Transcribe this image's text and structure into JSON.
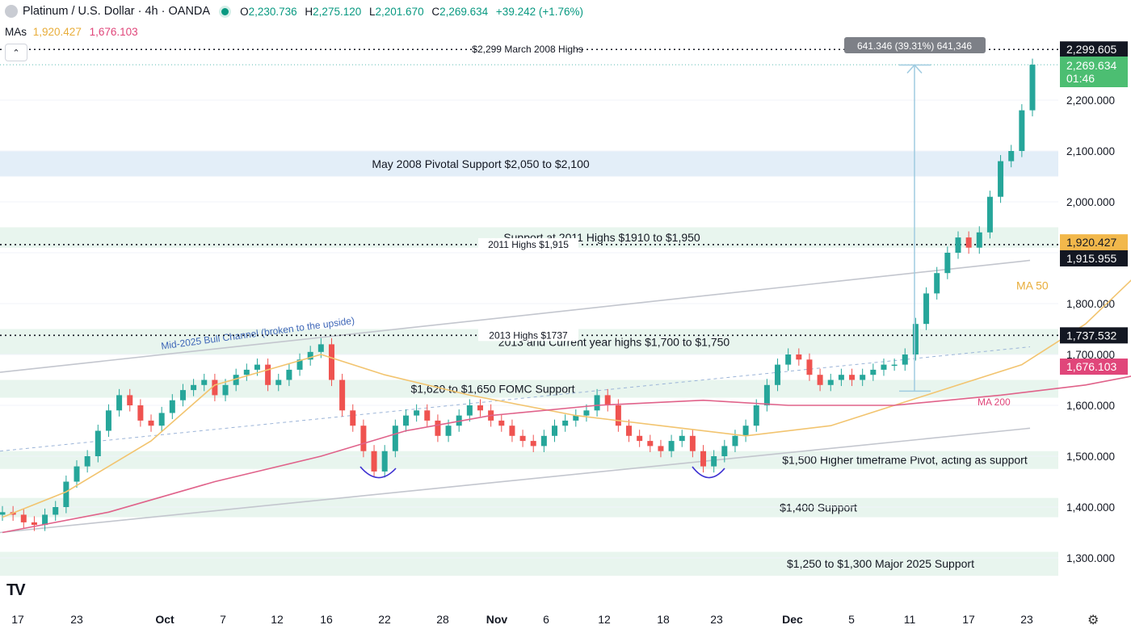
{
  "header": {
    "title": "Platinum / U.S. Dollar · 4h · OANDA",
    "ohlc": {
      "o_label": "O",
      "o": "2,230.736",
      "h_label": "H",
      "h": "2,275.120",
      "l_label": "L",
      "l": "2,201.670",
      "c_label": "C",
      "c": "2,269.634",
      "change": "+39.242 (+1.76%)"
    }
  },
  "mas": {
    "label": "MAs",
    "ma50": "1,920.427",
    "ma200": "1,676.103"
  },
  "colors": {
    "up": "#26a69a",
    "down": "#ef5350",
    "ma50": "#f2c46f",
    "ma200": "#e0628a",
    "zone_green": "#e8f5ee",
    "zone_blue": "#e3eef8",
    "measure": "#9fcbe0"
  },
  "chart_data": {
    "type": "candlestick",
    "symbol": "Platinum / U.S. Dollar",
    "timeframe": "4h",
    "x_labels": [
      "17",
      "23",
      "Oct",
      "7",
      "12",
      "16",
      "22",
      "28",
      "Nov",
      "6",
      "12",
      "18",
      "23",
      "Dec",
      "5",
      "11",
      "17",
      "23"
    ],
    "y_ticks": [
      "1,300.000",
      "1,400.000",
      "1,500.000",
      "1,600.000",
      "1,700.000",
      "1,800.000",
      "1,900.000",
      "2,000.000",
      "2,100.000",
      "2,200.000"
    ],
    "ylim": [
      1240,
      2340
    ],
    "price_series": [
      [
        "17",
        1390
      ],
      [
        "18",
        1385
      ],
      [
        "19",
        1370
      ],
      [
        "20",
        1365
      ],
      [
        "21",
        1385
      ],
      [
        "22",
        1400
      ],
      [
        "23",
        1450
      ],
      [
        "24",
        1480
      ],
      [
        "25",
        1500
      ],
      [
        "26",
        1550
      ],
      [
        "27",
        1590
      ],
      [
        "28",
        1620
      ],
      [
        "29",
        1600
      ],
      [
        "30",
        1570
      ],
      [
        "Oct",
        1560
      ],
      [
        "2",
        1585
      ],
      [
        "3",
        1610
      ],
      [
        "4",
        1630
      ],
      [
        "5",
        1640
      ],
      [
        "6",
        1650
      ],
      [
        "7",
        1620
      ],
      [
        "8",
        1640
      ],
      [
        "9",
        1660
      ],
      [
        "10",
        1670
      ],
      [
        "11",
        1680
      ],
      [
        "12",
        1640
      ],
      [
        "13",
        1650
      ],
      [
        "14",
        1670
      ],
      [
        "15",
        1690
      ],
      [
        "16",
        1705
      ],
      [
        "17",
        1720
      ],
      [
        "18",
        1650
      ],
      [
        "19",
        1590
      ],
      [
        "20",
        1560
      ],
      [
        "21",
        1510
      ],
      [
        "22",
        1470
      ],
      [
        "23",
        1510
      ],
      [
        "24",
        1560
      ],
      [
        "25",
        1580
      ],
      [
        "26",
        1590
      ],
      [
        "27",
        1570
      ],
      [
        "28",
        1540
      ],
      [
        "29",
        1560
      ],
      [
        "30",
        1580
      ],
      [
        "31",
        1600
      ],
      [
        "Nov",
        1590
      ],
      [
        "2",
        1570
      ],
      [
        "3",
        1560
      ],
      [
        "4",
        1540
      ],
      [
        "5",
        1530
      ],
      [
        "6",
        1520
      ],
      [
        "7",
        1540
      ],
      [
        "8",
        1560
      ],
      [
        "9",
        1570
      ],
      [
        "10",
        1580
      ],
      [
        "11",
        1590
      ],
      [
        "12",
        1620
      ],
      [
        "13",
        1600
      ],
      [
        "14",
        1560
      ],
      [
        "15",
        1540
      ],
      [
        "16",
        1530
      ],
      [
        "17",
        1520
      ],
      [
        "18",
        1510
      ],
      [
        "19",
        1530
      ],
      [
        "20",
        1540
      ],
      [
        "21",
        1510
      ],
      [
        "22",
        1480
      ],
      [
        "23",
        1500
      ],
      [
        "24",
        1520
      ],
      [
        "25",
        1540
      ],
      [
        "26",
        1560
      ],
      [
        "27",
        1600
      ],
      [
        "28",
        1640
      ],
      [
        "29",
        1680
      ],
      [
        "30",
        1700
      ],
      [
        "Dec",
        1690
      ],
      [
        "2",
        1660
      ],
      [
        "3",
        1640
      ],
      [
        "4",
        1650
      ],
      [
        "5",
        1660
      ],
      [
        "6",
        1650
      ],
      [
        "7",
        1660
      ],
      [
        "8",
        1670
      ],
      [
        "9",
        1680
      ],
      [
        "10",
        1680
      ],
      [
        "11",
        1700
      ],
      [
        "12",
        1760
      ],
      [
        "13",
        1820
      ],
      [
        "14",
        1860
      ],
      [
        "15",
        1900
      ],
      [
        "16",
        1930
      ],
      [
        "17",
        1910
      ],
      [
        "18",
        1940
      ],
      [
        "19",
        2010
      ],
      [
        "20",
        2080
      ],
      [
        "21",
        2100
      ],
      [
        "22",
        2180
      ],
      [
        "23",
        2269.634
      ]
    ],
    "ma50": [
      [
        0,
        1380
      ],
      [
        6,
        1430
      ],
      [
        14,
        1530
      ],
      [
        20,
        1640
      ],
      [
        30,
        1700
      ],
      [
        36,
        1660
      ],
      [
        44,
        1620
      ],
      [
        54,
        1580
      ],
      [
        62,
        1560
      ],
      [
        70,
        1540
      ],
      [
        78,
        1560
      ],
      [
        84,
        1600
      ],
      [
        90,
        1640
      ],
      [
        96,
        1680
      ],
      [
        102,
        1760
      ],
      [
        108,
        1880
      ],
      [
        111,
        1920.427
      ]
    ],
    "ma200": [
      [
        0,
        1350
      ],
      [
        10,
        1390
      ],
      [
        20,
        1450
      ],
      [
        30,
        1500
      ],
      [
        38,
        1550
      ],
      [
        46,
        1580
      ],
      [
        56,
        1600
      ],
      [
        66,
        1610
      ],
      [
        74,
        1600
      ],
      [
        84,
        1600
      ],
      [
        94,
        1620
      ],
      [
        102,
        1640
      ],
      [
        111,
        1676.103
      ]
    ],
    "levels": [
      {
        "label": "$2,299 March 2008 Highs",
        "value": 2299.605,
        "price_label": "2,299.605"
      },
      {
        "label": "2011 Highs $1,915",
        "value": 1915.955,
        "price_label": "1,915.955"
      },
      {
        "label": "2013 Highs $1737",
        "value": 1737.532,
        "price_label": "1,737.532"
      }
    ],
    "zones": [
      {
        "label": "May 2008 Pivotal Support $2,050 to $2,100",
        "low": 2050,
        "high": 2100,
        "color": "blue"
      },
      {
        "label": "Support at 2011 Highs $1910 to $1,950",
        "low": 1910,
        "high": 1950,
        "color": "green"
      },
      {
        "label": "2013 and Current year highs $1,700 to $1,750",
        "low": 1700,
        "high": 1750,
        "color": "green"
      },
      {
        "label": "$1,620 to $1,650 FOMC Support",
        "low": 1615,
        "high": 1650,
        "color": "green"
      },
      {
        "label": "$1,500 Higher timeframe Pivot, acting as support",
        "low": 1475,
        "high": 1510,
        "color": "green"
      },
      {
        "label": "$1,400 Support",
        "low": 1380,
        "high": 1418,
        "color": "green"
      },
      {
        "label": "$1,250 to $1,300 Major 2025 Support",
        "low": 1265,
        "high": 1312,
        "color": "green"
      }
    ],
    "annotations": {
      "channel_label": "Mid-2025 Bull Channel (broken to the upside)",
      "ma50_label": "MA 50",
      "ma200_label": "MA 200",
      "measure_label": "641.346 (39.31%) 641,346",
      "measure_from": 1628,
      "measure_to": 2269
    },
    "price_labels": {
      "current": "2,269.634",
      "countdown": "01:46",
      "ma50": "1,920.427",
      "ma200": "1,676.103"
    }
  }
}
